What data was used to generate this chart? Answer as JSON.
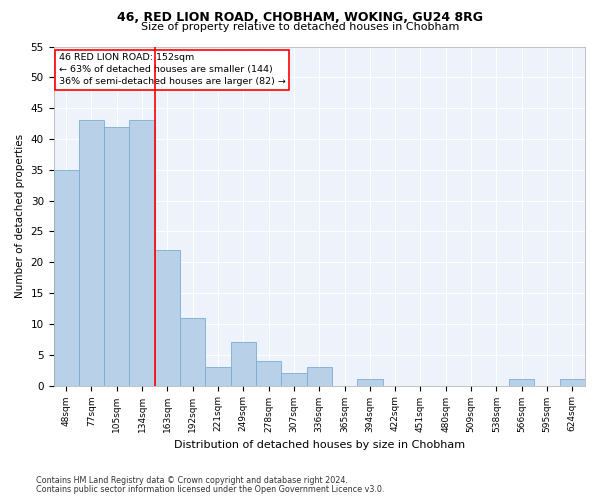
{
  "title1": "46, RED LION ROAD, CHOBHAM, WOKING, GU24 8RG",
  "title2": "Size of property relative to detached houses in Chobham",
  "xlabel": "Distribution of detached houses by size in Chobham",
  "ylabel": "Number of detached properties",
  "categories": [
    "48sqm",
    "77sqm",
    "105sqm",
    "134sqm",
    "163sqm",
    "192sqm",
    "221sqm",
    "249sqm",
    "278sqm",
    "307sqm",
    "336sqm",
    "365sqm",
    "394sqm",
    "422sqm",
    "451sqm",
    "480sqm",
    "509sqm",
    "538sqm",
    "566sqm",
    "595sqm",
    "624sqm"
  ],
  "values": [
    35,
    43,
    42,
    43,
    22,
    11,
    3,
    7,
    4,
    2,
    3,
    0,
    1,
    0,
    0,
    0,
    0,
    0,
    1,
    0,
    1
  ],
  "bar_color": "#b8d0e8",
  "bar_edge_color": "#7aadd4",
  "vline_x": 3.5,
  "vline_color": "red",
  "annotation_title": "46 RED LION ROAD: 152sqm",
  "annotation_line1": "← 63% of detached houses are smaller (144)",
  "annotation_line2": "36% of semi-detached houses are larger (82) →",
  "ylim": [
    0,
    55
  ],
  "yticks": [
    0,
    5,
    10,
    15,
    20,
    25,
    30,
    35,
    40,
    45,
    50,
    55
  ],
  "footnote1": "Contains HM Land Registry data © Crown copyright and database right 2024.",
  "footnote2": "Contains public sector information licensed under the Open Government Licence v3.0.",
  "bg_color": "#eef2fa"
}
